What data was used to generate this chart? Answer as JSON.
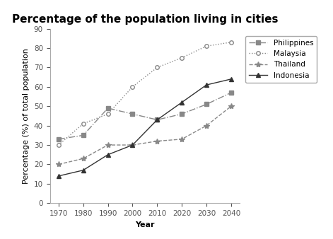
{
  "title": "Percentage of the population living in cities",
  "xlabel": "Year",
  "ylabel": "Percentage (%) of total population",
  "years": [
    1970,
    1980,
    1990,
    2000,
    2010,
    2020,
    2030,
    2040
  ],
  "series": {
    "Philippines": {
      "values": [
        33,
        35,
        49,
        46,
        43,
        46,
        51,
        57
      ],
      "color": "#888888",
      "linestyle": "-.",
      "marker": "s",
      "markersize": 4,
      "markerfacecolor": "#888888"
    },
    "Malaysia": {
      "values": [
        30,
        41,
        46,
        60,
        70,
        75,
        81,
        83
      ],
      "color": "#888888",
      "linestyle": ":",
      "marker": "o",
      "markersize": 4,
      "markerfacecolor": "white"
    },
    "Thailand": {
      "values": [
        20,
        23,
        30,
        30,
        32,
        33,
        40,
        50
      ],
      "color": "#888888",
      "linestyle": "--",
      "marker": "*",
      "markersize": 6,
      "markerfacecolor": "#888888"
    },
    "Indonesia": {
      "values": [
        14,
        17,
        25,
        30,
        43,
        52,
        61,
        64
      ],
      "color": "#333333",
      "linestyle": "-",
      "marker": "^",
      "markersize": 4,
      "markerfacecolor": "#333333"
    }
  },
  "ylim": [
    0,
    90
  ],
  "yticks": [
    0,
    10,
    20,
    30,
    40,
    50,
    60,
    70,
    80,
    90
  ],
  "background_color": "#ffffff",
  "title_fontsize": 11,
  "label_fontsize": 8,
  "tick_fontsize": 7.5,
  "legend_fontsize": 7.5
}
